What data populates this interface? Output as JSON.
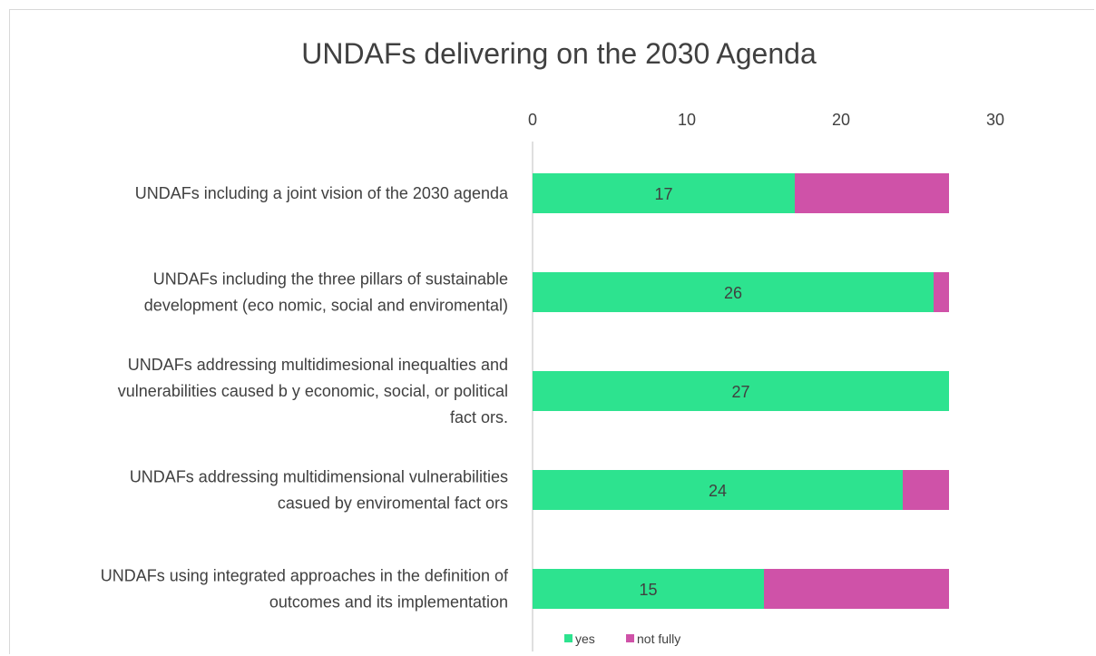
{
  "chart_data": {
    "type": "bar",
    "orientation": "horizontal",
    "stacked": true,
    "title": "UNDAFs delivering on the 2030 Agenda",
    "xlabel": "",
    "ylabel": "",
    "xlim": [
      0,
      30
    ],
    "x_ticks": [
      "0",
      "10",
      "20",
      "30"
    ],
    "x_axis_position": "top",
    "grid": false,
    "legend_position": "bottom",
    "categories": [
      [
        "UNDAFs including a joint vision of the 2030 agenda"
      ],
      [
        "UNDAFs including the three pillars of sustainable",
        "development (eco nomic, social and enviromental)"
      ],
      [
        "UNDAFs addressing multidimesional inequalties and",
        "vulnerabilities caused b y economic, social, or political",
        "fact ors."
      ],
      [
        "UNDAFs addressing multidimensional vulnerabilities",
        "casued by enviromental fact ors"
      ],
      [
        "UNDAFs using integrated approaches in the definition of",
        "outcomes and its implementation"
      ]
    ],
    "series": [
      {
        "name": "yes",
        "color": "#2de38f",
        "values": [
          17,
          26,
          27,
          24,
          15
        ],
        "labels": [
          "17",
          "26",
          "27",
          "24",
          "15"
        ]
      },
      {
        "name": "not fully",
        "color": "#cf52a8",
        "values": [
          10,
          1,
          0,
          3,
          12
        ]
      }
    ]
  }
}
